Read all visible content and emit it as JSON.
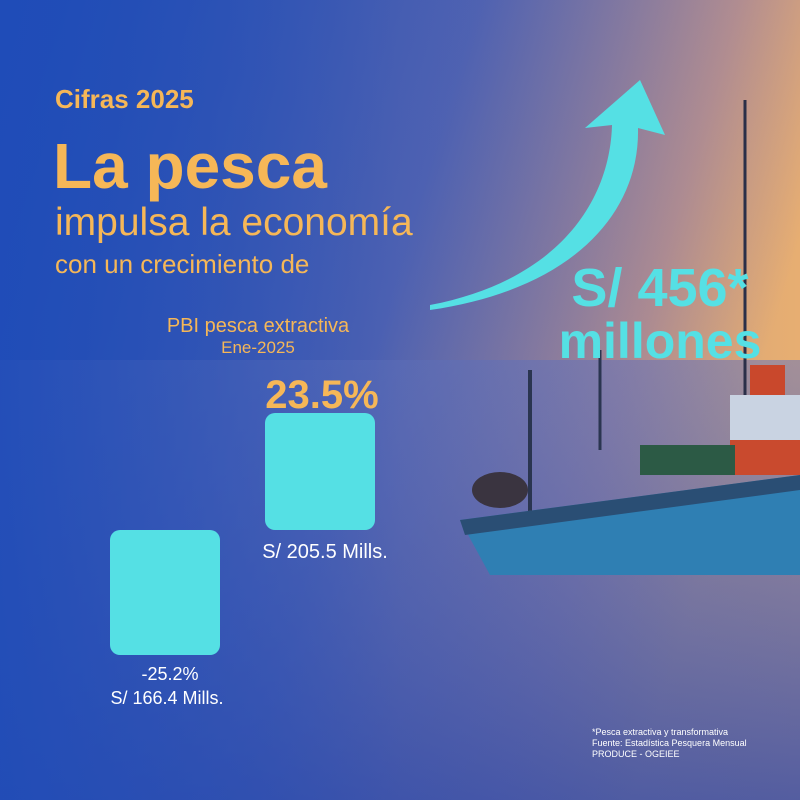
{
  "header": {
    "kicker": "Cifras 2025",
    "title": "La pesca",
    "subtitle": "impulsa la economía",
    "lead": "con un crecimiento de"
  },
  "highlight": {
    "value": "S/ 456*",
    "unit": "millones"
  },
  "chart": {
    "title": "PBI pesca extractiva",
    "period": "Ene-2025",
    "bars": [
      {
        "change": "-25.2%",
        "amount": "S/ 166.4 Mills."
      },
      {
        "change": "23.5%",
        "amount": "S/ 205.5 Mills."
      }
    ]
  },
  "footnotes": [
    "*Pesca extractiva y transformativa",
    "Fuente: Estadística Pesquera Mensual",
    "PRODUCE - OGEIEE"
  ]
}
